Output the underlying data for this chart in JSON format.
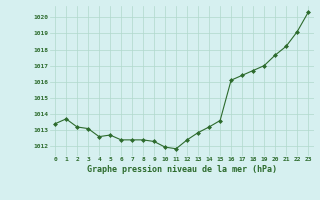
{
  "x": [
    0,
    1,
    2,
    3,
    4,
    5,
    6,
    7,
    8,
    9,
    10,
    11,
    12,
    13,
    14,
    15,
    16,
    17,
    18,
    19,
    20,
    21,
    22,
    23
  ],
  "y": [
    1013.4,
    1013.7,
    1013.2,
    1013.1,
    1012.6,
    1012.7,
    1012.4,
    1012.4,
    1012.4,
    1012.3,
    1011.95,
    1011.85,
    1012.4,
    1012.85,
    1013.2,
    1013.6,
    1016.1,
    1016.4,
    1016.7,
    1017.0,
    1017.65,
    1018.2,
    1019.1,
    1020.3
  ],
  "line_color": "#2d6b2d",
  "marker_color": "#2d6b2d",
  "bg_color": "#d6f0f0",
  "grid_color": "#b0d8cc",
  "xlabel": "Graphe pression niveau de la mer (hPa)",
  "xlabel_color": "#2d6b2d",
  "tick_color": "#2d6b2d",
  "yticks": [
    1012,
    1013,
    1014,
    1015,
    1016,
    1017,
    1018,
    1019,
    1020
  ],
  "ylim_min": 1011.4,
  "ylim_max": 1020.7,
  "xlim_min": -0.5,
  "xlim_max": 23.5
}
